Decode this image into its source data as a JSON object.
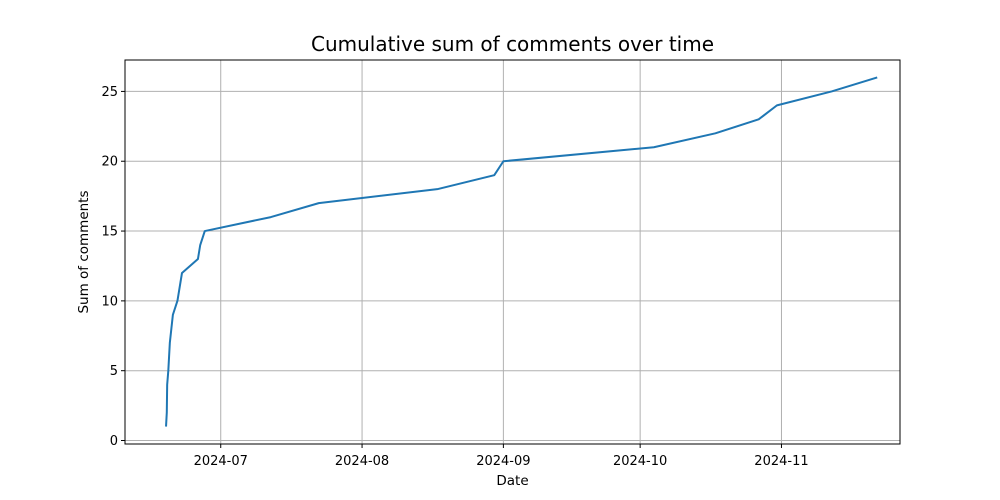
{
  "chart_data": {
    "type": "line",
    "title": "Cumulative sum of comments over time",
    "xlabel": "Date",
    "ylabel": "Sum of comments",
    "x_type": "date",
    "xlim": [
      "2024-06-10",
      "2024-11-27"
    ],
    "ylim": [
      -0.25,
      27.25
    ],
    "x_ticks": [
      {
        "date": "2024-07-01",
        "label": "2024-07"
      },
      {
        "date": "2024-08-01",
        "label": "2024-08"
      },
      {
        "date": "2024-09-01",
        "label": "2024-09"
      },
      {
        "date": "2024-10-01",
        "label": "2024-10"
      },
      {
        "date": "2024-11-01",
        "label": "2024-11"
      }
    ],
    "y_ticks": [
      0,
      5,
      10,
      15,
      20,
      25
    ],
    "grid": true,
    "series": [
      {
        "color": "#1f77b4",
        "points": [
          {
            "x": "2024-06-19T00:00",
            "y": 1
          },
          {
            "x": "2024-06-19T04:00",
            "y": 2
          },
          {
            "x": "2024-06-19T06:00",
            "y": 4
          },
          {
            "x": "2024-06-19T12:00",
            "y": 5
          },
          {
            "x": "2024-06-19T16:00",
            "y": 6
          },
          {
            "x": "2024-06-19T20:00",
            "y": 7
          },
          {
            "x": "2024-06-20T04:00",
            "y": 8
          },
          {
            "x": "2024-06-20T12:00",
            "y": 9
          },
          {
            "x": "2024-06-21T12:00",
            "y": 10
          },
          {
            "x": "2024-06-22T12:00",
            "y": 12
          },
          {
            "x": "2024-06-26T00:00",
            "y": 13
          },
          {
            "x": "2024-06-26T12:00",
            "y": 14
          },
          {
            "x": "2024-06-27T12:00",
            "y": 15
          },
          {
            "x": "2024-07-12T00:00",
            "y": 16
          },
          {
            "x": "2024-07-22T12:00",
            "y": 17
          },
          {
            "x": "2024-08-17T12:00",
            "y": 18
          },
          {
            "x": "2024-08-30T00:00",
            "y": 19
          },
          {
            "x": "2024-09-01T00:00",
            "y": 20
          },
          {
            "x": "2024-10-04T00:00",
            "y": 21
          },
          {
            "x": "2024-10-17T12:00",
            "y": 22
          },
          {
            "x": "2024-10-27T00:00",
            "y": 23
          },
          {
            "x": "2024-10-31T00:00",
            "y": 24
          },
          {
            "x": "2024-11-12T00:00",
            "y": 25
          },
          {
            "x": "2024-11-22T00:00",
            "y": 26
          }
        ]
      }
    ]
  }
}
